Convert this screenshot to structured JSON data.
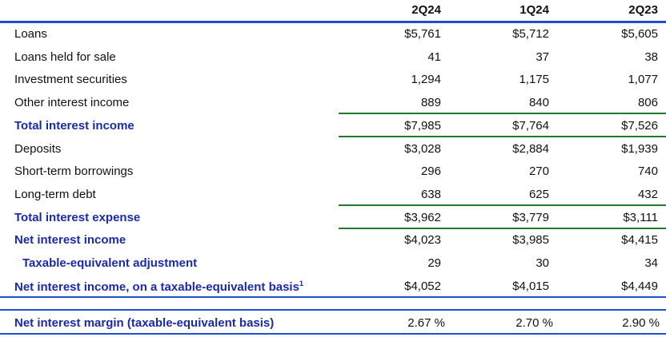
{
  "columns": [
    "2Q24",
    "1Q24",
    "2Q23"
  ],
  "rows": [
    {
      "label": "Loans",
      "values": [
        "$5,761",
        "$5,712",
        "$5,605"
      ]
    },
    {
      "label": "Loans held for sale",
      "values": [
        "41",
        "37",
        "38"
      ]
    },
    {
      "label": "Investment securities",
      "values": [
        "1,294",
        "1,175",
        "1,077"
      ]
    },
    {
      "label": "Other interest income",
      "values": [
        "889",
        "840",
        "806"
      ]
    },
    {
      "label": "Total interest income",
      "values": [
        "$7,985",
        "$7,764",
        "$7,526"
      ],
      "bold": true
    },
    {
      "label": "Deposits",
      "values": [
        "$3,028",
        "$2,884",
        "$1,939"
      ]
    },
    {
      "label": "Short-term borrowings",
      "values": [
        "296",
        "270",
        "740"
      ]
    },
    {
      "label": "Long-term debt",
      "values": [
        "638",
        "625",
        "432"
      ]
    },
    {
      "label": "Total interest expense",
      "values": [
        "$3,962",
        "$3,779",
        "$3,111"
      ],
      "bold": true
    },
    {
      "label": "Net interest income",
      "values": [
        "$4,023",
        "$3,985",
        "$4,415"
      ],
      "bold": true
    },
    {
      "label": "Taxable-equivalent adjustment",
      "values": [
        "29",
        "30",
        "34"
      ],
      "bold": true,
      "indent": true
    },
    {
      "label": "Net interest income, on a taxable-equivalent basis",
      "footnote": "1",
      "values": [
        "$4,052",
        "$4,015",
        "$4,449"
      ],
      "bold": true
    }
  ],
  "margin_row": {
    "label": "Net interest margin (taxable-equivalent basis)",
    "values": [
      "2.67 %",
      "2.70 %",
      "2.90 %"
    ]
  },
  "colors": {
    "blue": "#1f4fc8",
    "green": "#1d7a2a",
    "label_blue": "#1a2aa8"
  }
}
